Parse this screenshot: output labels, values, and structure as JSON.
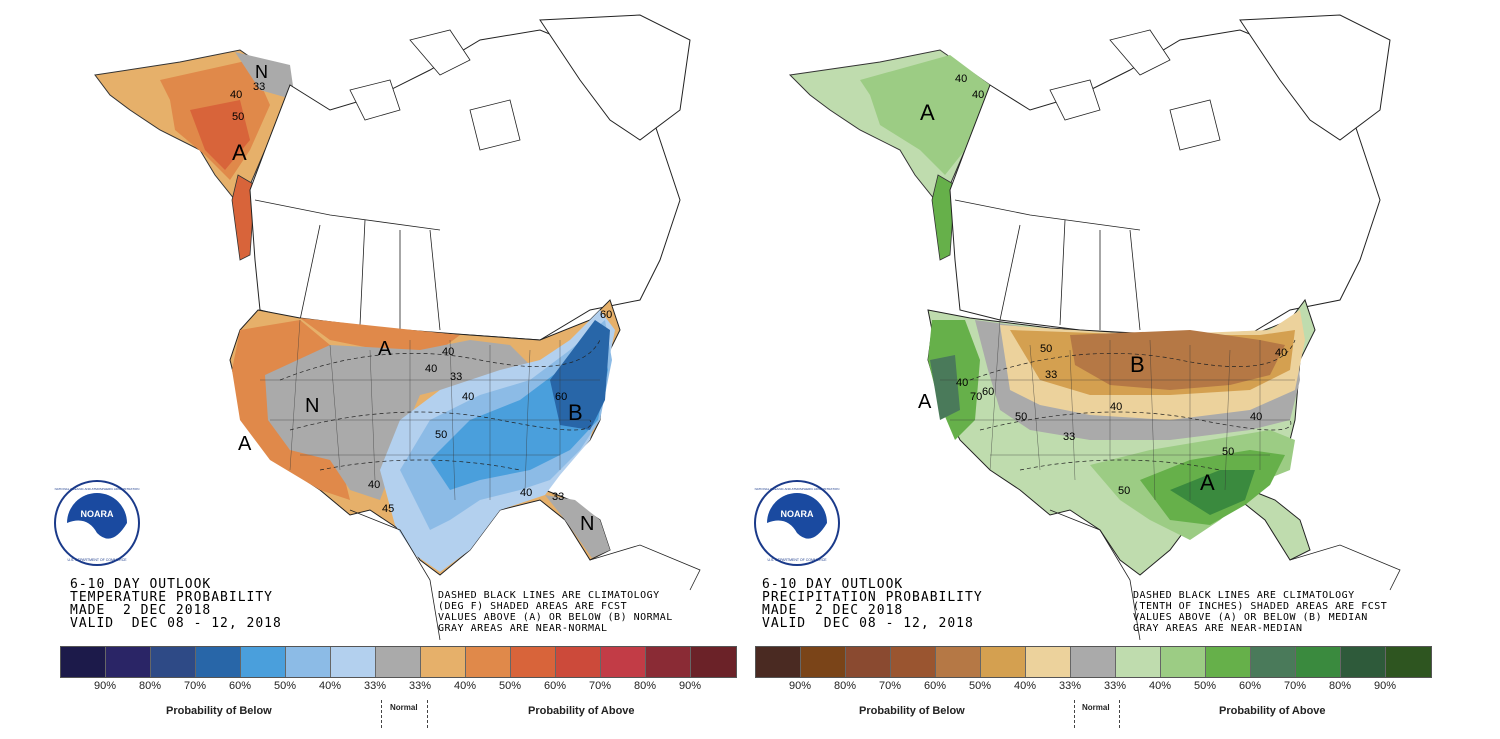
{
  "left_panel": {
    "title_lines": [
      "6-10 DAY OUTLOOK",
      "TEMPERATURE PROBABILITY",
      "MADE  2 DEC 2018",
      "VALID  DEC 08 - 12, 2018"
    ],
    "note_lines": [
      "DASHED BLACK LINES ARE CLIMATOLOGY",
      "(DEG F) SHADED AREAS ARE FCST",
      "VALUES ABOVE (A) OR BELOW (B) NORMAL",
      "GRAY AREAS ARE NEAR-NORMAL"
    ],
    "map_labels": {
      "alaska_n": "N",
      "alaska_a": "A",
      "west_a": "A",
      "north_a": "A",
      "west_n": "N",
      "east_b": "B",
      "florida_n": "N"
    },
    "contour_labels": [
      "33",
      "40",
      "50",
      "40",
      "40",
      "33",
      "40",
      "50",
      "60",
      "40",
      "45",
      "40",
      "33",
      "60"
    ],
    "legend_colors": [
      "#1c1a4a",
      "#2a2566",
      "#2e4a86",
      "#2866a8",
      "#4a9fdc",
      "#8cbbe6",
      "#b3d0ee",
      "#aaaaaa",
      "#e6b06a",
      "#e0894a",
      "#d8643a",
      "#cc4a3a",
      "#c23c46",
      "#8a2b35",
      "#6b2228"
    ],
    "tick_labels": [
      "90%",
      "80%",
      "70%",
      "60%",
      "50%",
      "40%",
      "33%",
      "33%",
      "40%",
      "50%",
      "60%",
      "70%",
      "80%",
      "90%"
    ],
    "below_caption": "Probability of Below",
    "normal_caption": "Normal",
    "above_caption": "Probability of Above"
  },
  "right_panel": {
    "title_lines": [
      "6-10 DAY OUTLOOK",
      "PRECIPITATION PROBABILITY",
      "MADE  2 DEC 2018",
      "VALID  DEC 08 - 12, 2018"
    ],
    "note_lines": [
      "DASHED BLACK LINES ARE CLIMATOLOGY",
      "(TENTH OF INCHES) SHADED AREAS ARE FCST",
      "VALUES ABOVE (A) OR BELOW (B) MEDIAN",
      "GRAY AREAS ARE NEAR-MEDIAN"
    ],
    "map_labels": {
      "alaska_a": "A",
      "west_a": "A",
      "north_b": "B",
      "south_a": "A"
    },
    "contour_labels": [
      "40",
      "40",
      "40",
      "33",
      "50",
      "40",
      "50",
      "50",
      "40",
      "33",
      "70",
      "60",
      "50",
      "40"
    ],
    "legend_colors": [
      "#4a2a22",
      "#7a4418",
      "#8a4a30",
      "#9a5530",
      "#b57845",
      "#d4a050",
      "#ecd29c",
      "#aaaaaa",
      "#bfdcae",
      "#9ccc84",
      "#66b04a",
      "#4a7a5a",
      "#3a8a3e",
      "#2e5a3a",
      "#2e5520"
    ],
    "tick_labels": [
      "90%",
      "80%",
      "70%",
      "60%",
      "50%",
      "40%",
      "33%",
      "33%",
      "40%",
      "50%",
      "60%",
      "70%",
      "80%",
      "90%"
    ],
    "below_caption": "Probability of Below",
    "normal_caption": "Normal",
    "above_caption": "Probability of Above"
  },
  "logo": {
    "text": "NOARA",
    "ring_text": "NATIONAL OCEANIC AND ATMOSPHERIC ADMINISTRATION",
    "dept_text": "U.S. DEPARTMENT OF COMMERCE"
  }
}
